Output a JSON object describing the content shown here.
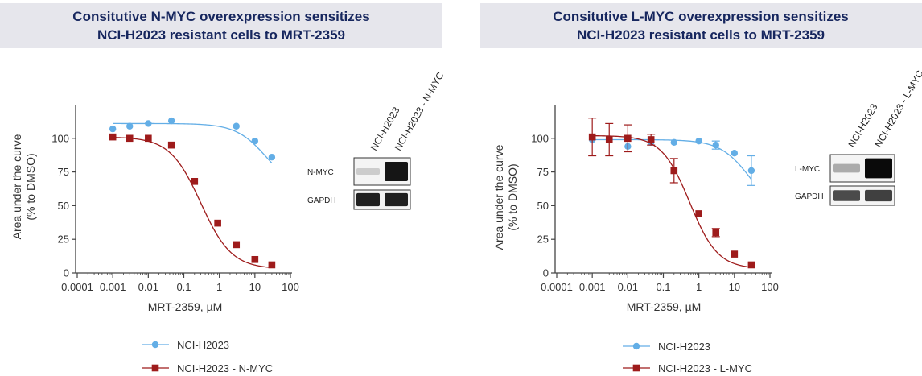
{
  "colors": {
    "blue": "#63aee6",
    "red": "#9e1b1b",
    "title_bg": "#e6e6ec",
    "title_text": "#16265e",
    "axis": "#444444"
  },
  "chart_data": [
    {
      "type": "scatter",
      "title_line1": "Consitutive N-MYC overexpression sensitizes",
      "title_line2": "NCI-H2023 resistant cells to MRT-2359",
      "xlabel": "MRT-2359, µM",
      "ylabel_line1": "Area under the curve",
      "ylabel_line2": "(% to DMSO)",
      "x_scale": "log",
      "xlim": [
        0.0001,
        100
      ],
      "ylim": [
        0,
        125
      ],
      "x_ticks": [
        "0.0001",
        "0.001",
        "0.01",
        "0.1",
        "1",
        "10",
        "100"
      ],
      "y_ticks": [
        "0",
        "25",
        "50",
        "75",
        "100"
      ],
      "legend_position": "bottom",
      "series": [
        {
          "name": "NCI-H2023",
          "color": "#63aee6",
          "marker": "circle",
          "points": [
            {
              "x": 0.001,
              "y": 107
            },
            {
              "x": 0.003,
              "y": 109
            },
            {
              "x": 0.01,
              "y": 111
            },
            {
              "x": 0.045,
              "y": 113
            },
            {
              "x": 3,
              "y": 109
            },
            {
              "x": 10,
              "y": 98
            },
            {
              "x": 30,
              "y": 86
            }
          ],
          "fit": {
            "top": 111,
            "bottom": 60,
            "ec50": 22,
            "hill": 1.0
          }
        },
        {
          "name": "NCI-H2023 - N-MYC",
          "color": "#9e1b1b",
          "marker": "square",
          "points": [
            {
              "x": 0.001,
              "y": 101
            },
            {
              "x": 0.003,
              "y": 100
            },
            {
              "x": 0.01,
              "y": 100
            },
            {
              "x": 0.045,
              "y": 95
            },
            {
              "x": 0.2,
              "y": 68
            },
            {
              "x": 0.9,
              "y": 37
            },
            {
              "x": 3,
              "y": 21
            },
            {
              "x": 10,
              "y": 10
            },
            {
              "x": 30,
              "y": 6
            }
          ],
          "fit": {
            "top": 101,
            "bottom": 3,
            "ec50": 0.3,
            "hill": 1.0
          }
        }
      ]
    },
    {
      "type": "scatter",
      "title_line1": "Consitutive L-MYC overexpression sensitizes",
      "title_line2": "NCI-H2023 resistant cells to MRT-2359",
      "xlabel": "MRT-2359, µM",
      "ylabel_line1": "Area under the curve",
      "ylabel_line2": "(% to DMSO)",
      "x_scale": "log",
      "xlim": [
        0.0001,
        100
      ],
      "ylim": [
        0,
        125
      ],
      "x_ticks": [
        "0.0001",
        "0.001",
        "0.01",
        "0.1",
        "1",
        "10",
        "100"
      ],
      "y_ticks": [
        "0",
        "25",
        "50",
        "75",
        "100"
      ],
      "legend_position": "bottom",
      "series": [
        {
          "name": "NCI-H2023",
          "color": "#63aee6",
          "marker": "circle",
          "points": [
            {
              "x": 0.001,
              "y": 99,
              "err": 0
            },
            {
              "x": 0.003,
              "y": 99,
              "err": 0
            },
            {
              "x": 0.01,
              "y": 94,
              "err": 0
            },
            {
              "x": 0.045,
              "y": 97,
              "err": 0
            },
            {
              "x": 0.2,
              "y": 97,
              "err": 0
            },
            {
              "x": 1,
              "y": 98,
              "err": 0
            },
            {
              "x": 3,
              "y": 95,
              "err": 3
            },
            {
              "x": 10,
              "y": 89,
              "err": 0
            },
            {
              "x": 30,
              "y": 76,
              "err": 11
            }
          ],
          "fit": {
            "top": 99,
            "bottom": 40,
            "ec50": 30,
            "hill": 1.0
          }
        },
        {
          "name": "NCI-H2023 - L-MYC",
          "color": "#9e1b1b",
          "marker": "square",
          "points": [
            {
              "x": 0.001,
              "y": 101,
              "err": 14
            },
            {
              "x": 0.003,
              "y": 99,
              "err": 12
            },
            {
              "x": 0.01,
              "y": 100,
              "err": 10
            },
            {
              "x": 0.045,
              "y": 99,
              "err": 4
            },
            {
              "x": 0.2,
              "y": 76,
              "err": 9
            },
            {
              "x": 1,
              "y": 44,
              "err": 0
            },
            {
              "x": 3,
              "y": 30,
              "err": 3
            },
            {
              "x": 10,
              "y": 14,
              "err": 0
            },
            {
              "x": 30,
              "y": 6,
              "err": 0
            }
          ],
          "fit": {
            "top": 102,
            "bottom": 3,
            "ec50": 0.55,
            "hill": 1.1
          }
        }
      ]
    }
  ],
  "blots": [
    {
      "lanes": [
        "NCI-H2023",
        "NCI-H2023 - N-MYC"
      ],
      "rows": [
        {
          "label": "N-MYC",
          "lane_intensity": [
            0.1,
            0.95
          ]
        },
        {
          "label": "GAPDH",
          "lane_intensity": [
            0.9,
            0.9
          ]
        }
      ]
    },
    {
      "lanes": [
        "NCI-H2023",
        "NCI-H2023 - L-MYC"
      ],
      "rows": [
        {
          "label": "L-MYC",
          "lane_intensity": [
            0.25,
            1.0
          ]
        },
        {
          "label": "GAPDH",
          "lane_intensity": [
            0.7,
            0.75
          ]
        }
      ]
    }
  ]
}
